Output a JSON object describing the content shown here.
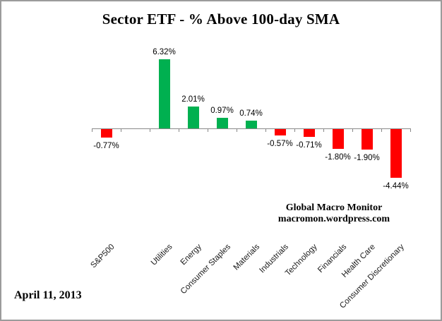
{
  "chart_data": {
    "type": "bar",
    "title": "Sector ETF - % Above 100-day SMA",
    "categories": [
      "S&P500",
      "",
      "Utilities",
      "Energy",
      "Consumer Staples",
      "Materials",
      "Industrials",
      "Technology",
      "Financials",
      "Health Care",
      "Consumer Discretionary"
    ],
    "values": [
      -0.77,
      null,
      6.32,
      2.01,
      0.97,
      0.74,
      -0.57,
      -0.71,
      -1.8,
      -1.9,
      -4.44
    ],
    "data_labels": [
      "-0.77%",
      "",
      "6.32%",
      "2.01%",
      "0.97%",
      "0.74%",
      "-0.57%",
      "-0.71%",
      "-1.80%",
      "-1.90%",
      "-4.44%"
    ],
    "xlabel": "",
    "ylabel": "",
    "ylim": [
      -5,
      7
    ],
    "grid": false,
    "legend": false,
    "colors": {
      "positive": "#00B050",
      "negative": "#FF0000",
      "axis": "#898989"
    }
  },
  "annotations": {
    "source_line1": "Global Macro Monitor",
    "source_line2": "macromon.wordpress.com",
    "date": "April 11, 2013"
  }
}
